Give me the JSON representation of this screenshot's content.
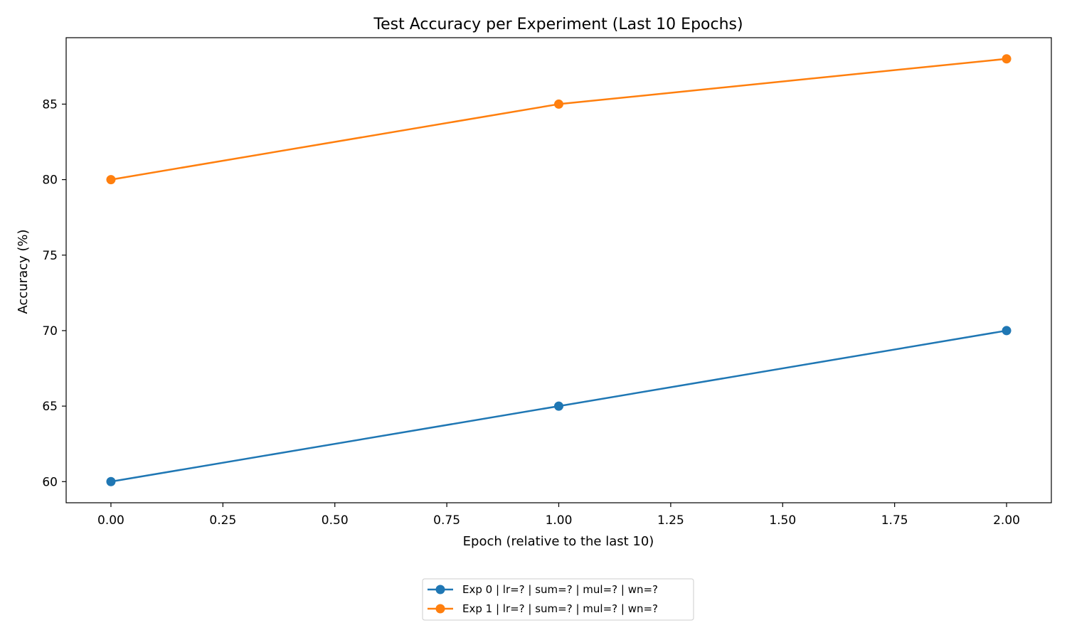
{
  "chart_data": {
    "type": "line",
    "title": "Test Accuracy per Experiment (Last 10 Epochs)",
    "xlabel": "Epoch (relative to the last 10)",
    "ylabel": "Accuracy (%)",
    "x": [
      0,
      1,
      2
    ],
    "xlim": [
      -0.1,
      2.1
    ],
    "ylim": [
      58.6,
      89.4
    ],
    "xticks": [
      0.0,
      0.25,
      0.5,
      0.75,
      1.0,
      1.25,
      1.5,
      1.75,
      2.0
    ],
    "xtick_labels": [
      "0.00",
      "0.25",
      "0.50",
      "0.75",
      "1.00",
      "1.25",
      "1.50",
      "1.75",
      "2.00"
    ],
    "yticks": [
      60,
      65,
      70,
      75,
      80,
      85
    ],
    "ytick_labels": [
      "60",
      "65",
      "70",
      "75",
      "80",
      "85"
    ],
    "grid": false,
    "legend_position": "bottom-center, below plot",
    "series": [
      {
        "name": "Exp 0 | lr=? | sum=? | mul=? | wn=?",
        "color": "#1f77b4",
        "values": [
          60,
          65,
          70
        ]
      },
      {
        "name": "Exp 1 | lr=? | sum=? | mul=? | wn=?",
        "color": "#ff7f0e",
        "values": [
          80,
          85,
          88
        ]
      }
    ]
  }
}
